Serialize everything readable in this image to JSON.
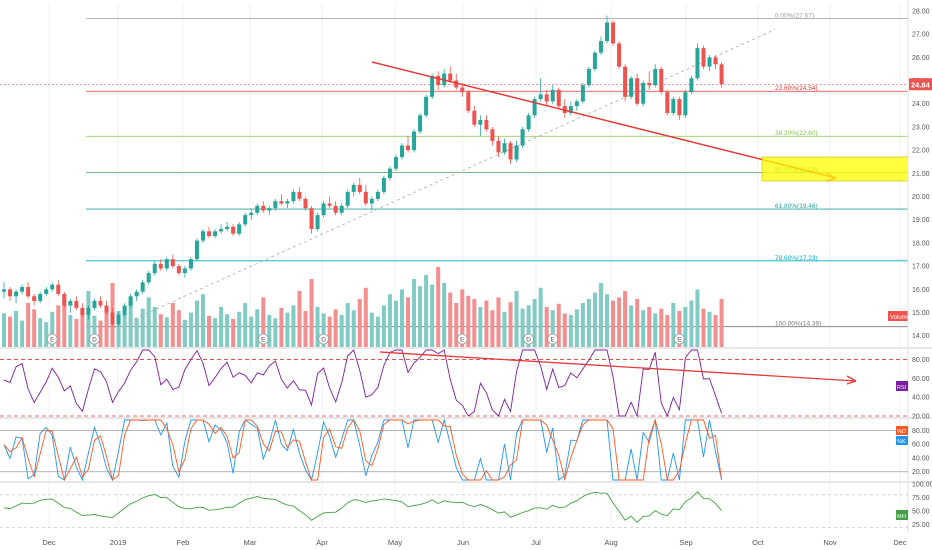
{
  "chart_data": {
    "type": "candlestick",
    "main": {
      "ylim": [
        13.6,
        28.3
      ],
      "y_ticks": [
        14,
        15,
        16,
        17,
        18,
        19,
        20,
        21,
        22,
        23,
        24,
        25,
        26,
        27,
        28
      ],
      "last_price": "24.84",
      "x_labels": [
        "Dec",
        "2019",
        "Feb",
        "Mar",
        "Apr",
        "May",
        "Jun",
        "Jul",
        "Aug",
        "Sep",
        "Oct",
        "Nov",
        "Dec"
      ],
      "candles": [
        [
          15.9,
          16.3,
          15.6,
          16.0
        ],
        [
          16.0,
          16.1,
          15.5,
          15.7
        ],
        [
          15.7,
          16.0,
          15.4,
          15.9
        ],
        [
          15.9,
          16.2,
          15.8,
          16.1
        ],
        [
          16.1,
          16.3,
          15.6,
          15.7
        ],
        [
          15.7,
          15.8,
          15.3,
          15.5
        ],
        [
          15.5,
          15.9,
          15.4,
          15.8
        ],
        [
          15.8,
          16.1,
          15.7,
          16.0
        ],
        [
          16.0,
          16.3,
          15.9,
          16.2
        ],
        [
          16.2,
          16.4,
          15.7,
          15.8
        ],
        [
          15.8,
          15.9,
          15.2,
          15.3
        ],
        [
          15.3,
          15.6,
          15.0,
          15.5
        ],
        [
          15.5,
          15.7,
          15.1,
          15.2
        ],
        [
          15.2,
          15.4,
          14.8,
          14.9
        ],
        [
          14.9,
          15.3,
          14.7,
          15.2
        ],
        [
          15.2,
          15.6,
          15.1,
          15.5
        ],
        [
          15.5,
          15.7,
          15.2,
          15.3
        ],
        [
          15.3,
          15.5,
          14.9,
          15.0
        ],
        [
          15.0,
          15.2,
          14.4,
          14.5
        ],
        [
          14.5,
          15.0,
          14.4,
          14.9
        ],
        [
          14.9,
          15.4,
          14.8,
          15.3
        ],
        [
          15.3,
          15.8,
          15.2,
          15.7
        ],
        [
          15.7,
          16.0,
          15.5,
          15.9
        ],
        [
          15.9,
          16.4,
          15.8,
          16.3
        ],
        [
          16.3,
          16.8,
          16.2,
          16.7
        ],
        [
          16.7,
          17.2,
          16.6,
          17.1
        ],
        [
          17.1,
          17.3,
          16.8,
          16.9
        ],
        [
          16.9,
          17.4,
          16.8,
          17.3
        ],
        [
          17.3,
          17.5,
          16.9,
          17.0
        ],
        [
          17.0,
          17.1,
          16.6,
          16.7
        ],
        [
          16.7,
          17.0,
          16.5,
          16.9
        ],
        [
          16.9,
          17.4,
          16.8,
          17.3
        ],
        [
          17.3,
          18.2,
          17.2,
          18.1
        ],
        [
          18.1,
          18.6,
          18.0,
          18.5
        ],
        [
          18.5,
          18.7,
          18.2,
          18.3
        ],
        [
          18.3,
          18.6,
          18.2,
          18.5
        ],
        [
          18.5,
          18.8,
          18.4,
          18.6
        ],
        [
          18.6,
          18.9,
          18.5,
          18.7
        ],
        [
          18.7,
          18.8,
          18.3,
          18.4
        ],
        [
          18.4,
          18.9,
          18.3,
          18.8
        ],
        [
          18.8,
          19.3,
          18.7,
          19.2
        ],
        [
          19.2,
          19.5,
          19.0,
          19.3
        ],
        [
          19.3,
          19.7,
          19.2,
          19.6
        ],
        [
          19.6,
          19.8,
          19.3,
          19.4
        ],
        [
          19.4,
          19.6,
          19.2,
          19.5
        ],
        [
          19.5,
          19.9,
          19.4,
          19.8
        ],
        [
          19.8,
          20.1,
          19.6,
          19.7
        ],
        [
          19.7,
          19.9,
          19.5,
          19.8
        ],
        [
          19.8,
          20.3,
          19.7,
          20.2
        ],
        [
          20.2,
          20.4,
          19.8,
          19.9
        ],
        [
          19.9,
          20.0,
          19.4,
          19.5
        ],
        [
          19.5,
          19.6,
          18.4,
          18.6
        ],
        [
          18.6,
          19.3,
          18.5,
          19.2
        ],
        [
          19.2,
          19.8,
          19.1,
          19.7
        ],
        [
          19.7,
          20.0,
          19.5,
          19.6
        ],
        [
          19.6,
          19.8,
          19.2,
          19.3
        ],
        [
          19.3,
          19.7,
          19.2,
          19.6
        ],
        [
          19.6,
          20.3,
          19.5,
          20.2
        ],
        [
          20.2,
          20.6,
          20.0,
          20.5
        ],
        [
          20.5,
          20.8,
          20.1,
          20.2
        ],
        [
          20.2,
          20.5,
          19.6,
          19.7
        ],
        [
          19.7,
          20.0,
          19.4,
          19.9
        ],
        [
          19.9,
          20.3,
          19.8,
          20.2
        ],
        [
          20.2,
          20.9,
          20.1,
          20.8
        ],
        [
          20.8,
          21.3,
          20.7,
          21.2
        ],
        [
          21.2,
          21.8,
          21.1,
          21.7
        ],
        [
          21.7,
          22.3,
          21.6,
          22.2
        ],
        [
          22.2,
          22.6,
          21.9,
          22.0
        ],
        [
          22.0,
          22.9,
          21.9,
          22.8
        ],
        [
          22.8,
          23.6,
          22.7,
          23.5
        ],
        [
          23.5,
          24.4,
          23.4,
          24.3
        ],
        [
          24.3,
          25.3,
          24.2,
          25.2
        ],
        [
          25.2,
          25.4,
          24.6,
          24.8
        ],
        [
          24.8,
          25.5,
          24.7,
          25.3
        ],
        [
          25.3,
          25.6,
          24.9,
          25.0
        ],
        [
          25.0,
          25.3,
          24.6,
          24.7
        ],
        [
          24.7,
          24.9,
          24.3,
          24.5
        ],
        [
          24.5,
          24.6,
          23.6,
          23.7
        ],
        [
          23.7,
          23.9,
          23.0,
          23.1
        ],
        [
          23.1,
          23.5,
          22.6,
          23.3
        ],
        [
          23.3,
          23.5,
          22.8,
          22.9
        ],
        [
          22.9,
          23.0,
          22.2,
          22.4
        ],
        [
          22.4,
          22.6,
          21.7,
          21.9
        ],
        [
          21.9,
          22.5,
          21.8,
          22.3
        ],
        [
          22.3,
          22.4,
          21.4,
          21.6
        ],
        [
          21.6,
          22.4,
          21.5,
          22.2
        ],
        [
          22.2,
          23.0,
          22.1,
          22.9
        ],
        [
          22.9,
          23.6,
          22.8,
          23.5
        ],
        [
          23.5,
          24.3,
          23.4,
          24.2
        ],
        [
          24.2,
          25.1,
          24.1,
          24.4
        ],
        [
          24.4,
          24.6,
          23.9,
          24.1
        ],
        [
          24.1,
          24.8,
          24.0,
          24.6
        ],
        [
          24.6,
          24.7,
          23.8,
          23.9
        ],
        [
          23.9,
          24.2,
          23.4,
          23.6
        ],
        [
          23.6,
          24.1,
          23.5,
          23.9
        ],
        [
          23.9,
          24.2,
          23.7,
          24.1
        ],
        [
          24.1,
          24.9,
          24.0,
          24.8
        ],
        [
          24.8,
          25.6,
          24.7,
          25.5
        ],
        [
          25.5,
          26.3,
          25.4,
          26.2
        ],
        [
          26.2,
          26.9,
          26.1,
          26.7
        ],
        [
          26.7,
          27.8,
          26.6,
          27.5
        ],
        [
          27.5,
          27.6,
          26.5,
          26.6
        ],
        [
          26.6,
          26.7,
          25.5,
          25.6
        ],
        [
          25.6,
          25.7,
          24.1,
          24.3
        ],
        [
          24.3,
          25.2,
          24.2,
          25.1
        ],
        [
          25.1,
          25.3,
          23.9,
          24.0
        ],
        [
          24.0,
          25.0,
          23.9,
          24.9
        ],
        [
          24.9,
          25.4,
          24.6,
          24.8
        ],
        [
          24.8,
          25.7,
          24.7,
          25.5
        ],
        [
          25.5,
          25.6,
          24.4,
          24.5
        ],
        [
          24.5,
          24.6,
          23.5,
          23.6
        ],
        [
          23.6,
          24.3,
          23.5,
          24.2
        ],
        [
          24.2,
          24.3,
          23.3,
          23.5
        ],
        [
          23.5,
          24.6,
          23.4,
          24.5
        ],
        [
          24.5,
          25.2,
          24.4,
          25.1
        ],
        [
          25.1,
          26.6,
          25.0,
          26.4
        ],
        [
          26.4,
          26.5,
          25.5,
          25.6
        ],
        [
          25.6,
          26.1,
          25.4,
          26.0
        ],
        [
          26.0,
          26.1,
          25.5,
          25.7
        ],
        [
          25.7,
          25.8,
          24.7,
          24.84
        ]
      ],
      "volumes": [
        0.42,
        0.38,
        0.45,
        0.33,
        0.55,
        0.47,
        0.36,
        0.31,
        0.44,
        0.52,
        0.6,
        0.4,
        0.35,
        0.48,
        0.7,
        0.39,
        0.33,
        0.51,
        0.8,
        0.45,
        0.42,
        0.57,
        0.36,
        0.48,
        0.62,
        0.5,
        0.41,
        0.37,
        0.55,
        0.46,
        0.34,
        0.43,
        0.58,
        0.66,
        0.39,
        0.36,
        0.5,
        0.41,
        0.35,
        0.44,
        0.55,
        0.38,
        0.47,
        0.62,
        0.4,
        0.36,
        0.49,
        0.43,
        0.52,
        0.7,
        0.45,
        0.85,
        0.5,
        0.42,
        0.38,
        0.47,
        0.4,
        0.55,
        0.46,
        0.6,
        0.74,
        0.43,
        0.38,
        0.52,
        0.66,
        0.58,
        0.72,
        0.62,
        0.85,
        0.76,
        0.9,
        0.78,
        1.0,
        0.8,
        0.68,
        0.55,
        0.72,
        0.64,
        0.6,
        0.5,
        0.58,
        0.46,
        0.62,
        0.44,
        0.56,
        0.7,
        0.48,
        0.52,
        0.6,
        0.74,
        0.5,
        0.46,
        0.54,
        0.42,
        0.4,
        0.47,
        0.55,
        0.6,
        0.68,
        0.8,
        0.66,
        0.58,
        0.62,
        0.7,
        0.52,
        0.6,
        0.46,
        0.5,
        0.42,
        0.48,
        0.4,
        0.55,
        0.45,
        0.5,
        0.58,
        0.72,
        0.48,
        0.44,
        0.4,
        0.6
      ],
      "fibonacci": [
        {
          "label": "0.00%(27.67)",
          "value": 27.67,
          "color": "#9e9e9e"
        },
        {
          "label": "23.60%(24.54)",
          "value": 24.54,
          "color": "#e53935"
        },
        {
          "label": "38.20%(22.60)",
          "value": 22.6,
          "color": "#8bc34a"
        },
        {
          "label": "50.00%(21.03)",
          "value": 21.03,
          "color": "#4caf50"
        },
        {
          "label": "61.80%(19.46)",
          "value": 19.46,
          "color": "#26a69a"
        },
        {
          "label": "78.60%(17.23)",
          "value": 17.23,
          "color": "#00acc1"
        },
        {
          "label": "100.00%(14.39)",
          "value": 14.39,
          "color": "#787878"
        }
      ],
      "volume_label": "Volume",
      "event_markers": [
        "E",
        "D",
        "E",
        "D",
        "E",
        "D",
        "E",
        "E"
      ]
    },
    "rsi": {
      "label": "RSI",
      "ylim": [
        20,
        90
      ],
      "y_ticks": [
        20,
        40,
        60,
        80
      ],
      "overbought": 80,
      "oversold": 20
    },
    "stoch": {
      "labels": [
        "%D",
        "%K"
      ],
      "ylim": [
        8,
        95
      ],
      "y_ticks": [
        20,
        40,
        60,
        80
      ]
    },
    "mfi": {
      "label": "MFI",
      "ylim": [
        15,
        100
      ],
      "y_ticks": [
        25,
        50,
        75,
        100
      ]
    },
    "colors": {
      "up": "#26a69a",
      "down": "#ef5350",
      "trend": "#e53935",
      "box": "#ffff00",
      "rsi": "#7b1fa2",
      "k": "#2196f3",
      "d": "#ff5722",
      "mfi": "#43a047"
    }
  }
}
